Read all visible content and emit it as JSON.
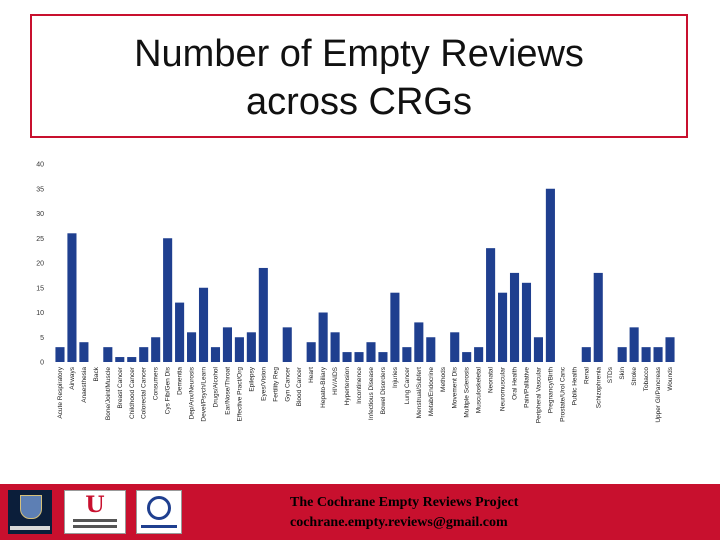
{
  "title": {
    "line1": "Number of Empty Reviews",
    "line2": "across CRGs"
  },
  "chart_data": {
    "type": "bar",
    "title": "Number of Empty Reviews across CRGs",
    "xlabel": "",
    "ylabel": "",
    "ylim": [
      0,
      40
    ],
    "yticks": [
      0,
      5,
      10,
      15,
      20,
      25,
      30,
      35,
      40
    ],
    "grid": false,
    "legend": "none",
    "bar_color": "#1f3f8f",
    "categories": [
      "Acute Respiratory",
      "Airways",
      "Anaesthesia",
      "Back",
      "Bone/Joint/Muscle",
      "Breast Cancer",
      "Childhood Cancer",
      "Colorectal Cancer",
      "Consumers",
      "Cys Fib/Gen Dis",
      "Dementia",
      "Dep/Anx/Neurosis",
      "Devel/Psych/Learn",
      "Drugs/Alcohol",
      "Ear/Nose/Throat",
      "Effective Pract/Org",
      "Epilepsy",
      "Eyes/Vision",
      "Fertility Reg",
      "Gyn Cancer",
      "Blood Cancer",
      "Heart",
      "Hepato-Biliary",
      "HIV/AIDS",
      "Hypertension",
      "Incontinence",
      "Infectious Disease",
      "Bowel Disorders",
      "Injuries",
      "Lung Cancer",
      "Menstrual/Subfert",
      "Metab/Endocrine",
      "Methods",
      "Movement Dis",
      "Multiple Sclerosis",
      "Musculoskeletal",
      "Neonatal",
      "Neuromuscular",
      "Oral Health",
      "Pain/Palliative",
      "Peripheral Vascular",
      "Pregnancy/Birth",
      "Prostate/Urol Canc",
      "Public Health",
      "Renal",
      "Schizophrenia",
      "STDs",
      "Skin",
      "Stroke",
      "Tobacco",
      "Upper GI/Pancreas",
      "Wounds"
    ],
    "values": [
      3,
      26,
      4,
      0,
      3,
      1,
      1,
      3,
      5,
      25,
      12,
      6,
      15,
      3,
      7,
      5,
      6,
      19,
      0,
      7,
      0,
      4,
      10,
      6,
      2,
      2,
      4,
      2,
      14,
      3,
      8,
      5,
      0,
      6,
      2,
      3,
      23,
      14,
      18,
      16,
      5,
      35,
      0,
      0,
      3,
      18,
      0,
      3,
      7,
      3,
      3,
      5
    ]
  },
  "footer": {
    "line1": "The Cochrane Empty Reviews Project",
    "line2": "cochrane.empty.reviews@gmail.com"
  }
}
